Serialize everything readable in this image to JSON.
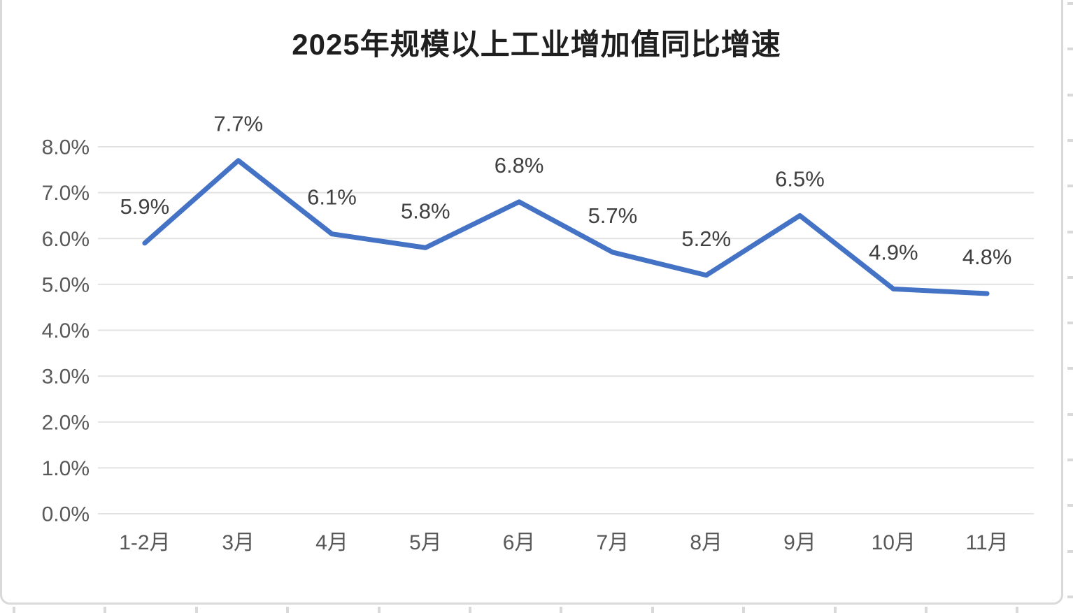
{
  "chart_data": {
    "type": "line",
    "title": "2025年规模以上工业增加值同比增速",
    "categories": [
      "1-2月",
      "3月",
      "4月",
      "5月",
      "6月",
      "7月",
      "8月",
      "9月",
      "10月",
      "11月"
    ],
    "values": [
      5.9,
      7.7,
      6.1,
      5.8,
      6.8,
      5.7,
      5.2,
      6.5,
      4.9,
      4.8
    ],
    "data_labels": [
      "5.9%",
      "7.7%",
      "6.1%",
      "5.8%",
      "6.8%",
      "5.7%",
      "5.2%",
      "6.5%",
      "4.9%",
      "4.8%"
    ],
    "y_tick_labels": [
      "0.0%",
      "1.0%",
      "2.0%",
      "3.0%",
      "4.0%",
      "5.0%",
      "6.0%",
      "7.0%",
      "8.0%"
    ],
    "ylim": [
      0,
      8
    ],
    "y_tick_step": 1,
    "xlabel": "",
    "ylabel": "",
    "grid": "horizontal",
    "legend": "none",
    "colors": {
      "line": "#4472C4",
      "gridline": "#E2E2E2",
      "axis_label": "#595959",
      "data_label": "#404040",
      "title": "#1F1F1F",
      "frame_border": "#D9D9D9"
    }
  }
}
